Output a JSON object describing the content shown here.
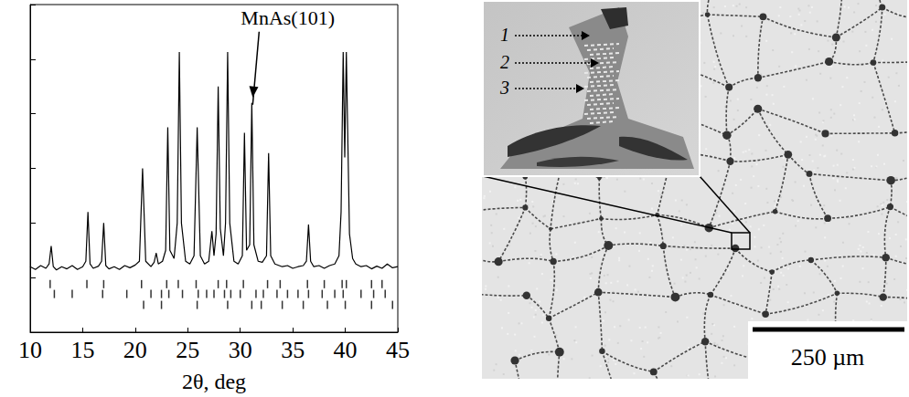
{
  "chart_data": {
    "type": "line",
    "x_label": "2θ, deg",
    "x": [
      10,
      10.5,
      11,
      11.5,
      11.8,
      12.0,
      12.2,
      12.5,
      13,
      13.5,
      14,
      14.5,
      15,
      15.3,
      15.5,
      15.7,
      16,
      16.5,
      16.8,
      17.0,
      17.2,
      17.5,
      18,
      18.5,
      19,
      19.5,
      20,
      20.4,
      20.7,
      21.0,
      21.5,
      21.8,
      22.0,
      22.2,
      22.6,
      22.9,
      23.1,
      23.3,
      23.7,
      24.0,
      24.2,
      24.4,
      24.8,
      25.2,
      25.6,
      25.9,
      26.2,
      26.6,
      27.0,
      27.3,
      27.5,
      27.7,
      27.9,
      28.1,
      28.4,
      28.6,
      28.8,
      29.0,
      29.4,
      29.8,
      30.2,
      30.4,
      30.6,
      30.9,
      31.1,
      31.3,
      31.7,
      32.1,
      32.5,
      32.7,
      32.9,
      33.3,
      34,
      34.5,
      35,
      35.5,
      36,
      36.3,
      36.5,
      36.7,
      37,
      37.5,
      38,
      38.5,
      39,
      39.4,
      39.6,
      39.8,
      39.95,
      40.1,
      40.2,
      40.4,
      40.7,
      41,
      41.5,
      42,
      42.5,
      43,
      43.5,
      44,
      44.5,
      45
    ],
    "values": [
      1.2,
      1.15,
      1.22,
      1.17,
      1.25,
      1.58,
      1.2,
      1.14,
      1.2,
      1.16,
      1.22,
      1.15,
      1.2,
      1.3,
      2.2,
      1.25,
      1.17,
      1.21,
      1.3,
      2.0,
      1.22,
      1.16,
      1.2,
      1.15,
      1.22,
      1.18,
      1.23,
      1.3,
      3.0,
      1.3,
      1.2,
      1.28,
      1.45,
      1.25,
      1.3,
      1.5,
      3.75,
      1.5,
      1.35,
      2.0,
      5.13,
      2.0,
      1.3,
      1.25,
      1.4,
      3.75,
      1.4,
      1.25,
      1.3,
      1.85,
      1.4,
      1.8,
      4.5,
      1.9,
      1.4,
      2.0,
      5.13,
      2.0,
      1.3,
      1.25,
      1.4,
      3.65,
      1.5,
      1.6,
      4.2,
      1.6,
      1.3,
      1.28,
      1.4,
      3.28,
      1.4,
      1.25,
      1.2,
      1.22,
      1.17,
      1.2,
      1.22,
      1.3,
      1.97,
      1.3,
      1.2,
      1.22,
      1.17,
      1.22,
      1.25,
      1.4,
      2.2,
      5.13,
      3.2,
      5.13,
      4.0,
      1.8,
      1.35,
      1.25,
      1.2,
      1.22,
      1.16,
      1.21,
      1.17,
      1.25,
      1.18,
      1.2
    ],
    "color": "#000000",
    "series": [
      {
        "type": "scatter",
        "marker": "vline",
        "color": "#000000",
        "x": [
          11.9,
          15.4,
          17.0,
          20.6,
          23.0,
          24.1,
          25.8,
          27.9,
          28.7,
          30.3,
          32.6,
          33.8,
          36.4,
          38.0,
          39.7,
          40.1,
          42.5,
          43.5
        ],
        "values": [
          0.88,
          0.88,
          0.88,
          0.88,
          0.88,
          0.88,
          0.88,
          0.88,
          0.88,
          0.88,
          0.88,
          0.88,
          0.88,
          0.88,
          0.88,
          0.88,
          0.88,
          0.88
        ]
      },
      {
        "type": "scatter",
        "marker": "vline",
        "color": "#000000",
        "x": [
          12.3,
          14.0,
          16.9,
          19.2,
          21.5,
          22.5,
          23.2,
          24.5,
          26.0,
          26.8,
          27.5,
          28.5,
          29.1,
          30.0,
          31.5,
          32.2,
          33.5,
          34.5,
          35.5,
          36.5,
          37.8,
          39.0,
          39.8,
          41.5,
          42.7,
          43.8
        ],
        "values": [
          0.7,
          0.7,
          0.7,
          0.7,
          0.7,
          0.7,
          0.7,
          0.7,
          0.7,
          0.7,
          0.7,
          0.7,
          0.7,
          0.7,
          0.7,
          0.7,
          0.7,
          0.7,
          0.7,
          0.7,
          0.7,
          0.7,
          0.7,
          0.7,
          0.7,
          0.7
        ]
      },
      {
        "type": "scatter",
        "marker": "vline",
        "color": "#000000",
        "x": [
          20.8,
          22.5,
          25.9,
          28.8,
          31.1,
          32.0,
          34.0,
          36.0,
          38.3,
          40.0,
          42.5,
          44.5
        ],
        "values": [
          0.5,
          0.5,
          0.5,
          0.5,
          0.5,
          0.5,
          0.5,
          0.5,
          0.5,
          0.5,
          0.5,
          0.5
        ]
      }
    ],
    "annotations": [
      {
        "text": "MnAs(101)",
        "x": 31.1,
        "y": 4.2
      }
    ],
    "xlim": [
      10,
      45
    ],
    "xticks": [
      10,
      15,
      20,
      25,
      30,
      35,
      40,
      45
    ],
    "ylim": [
      0,
      6
    ],
    "yticks": [
      0,
      1,
      2,
      3,
      4,
      5,
      6
    ],
    "tick_labels": "x",
    "grid": false
  },
  "micrograph": {
    "scale_bar": "250 µm",
    "inset_labels": [
      "1",
      "2",
      "3"
    ]
  }
}
